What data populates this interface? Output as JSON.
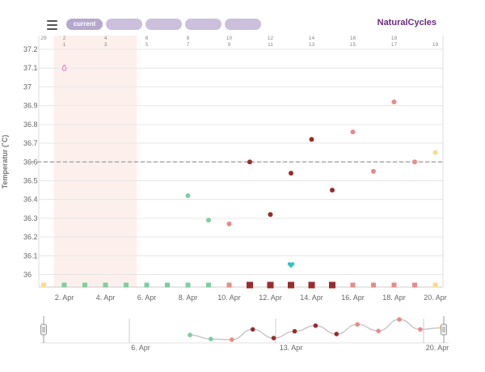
{
  "header": {
    "brand": "NaturalCycles",
    "tabs": [
      {
        "label": "current",
        "active": true
      },
      {
        "label": "",
        "active": false
      },
      {
        "label": "",
        "active": false
      },
      {
        "label": "",
        "active": false
      },
      {
        "label": "",
        "active": false
      }
    ]
  },
  "colors": {
    "period_band": "#fdf0ec",
    "coverline": "#aaaaaa",
    "green_day": "#7ccf9e",
    "red_day": "#e88a8a",
    "dark_red_day": "#9b2b2b",
    "yellow_day": "#ffd98a",
    "brand": "#6a2c84",
    "ovulation_heart": "#2ec4c4",
    "mucus_drop": "#e07bbf"
  },
  "chart_data": {
    "type": "scatter",
    "ylabel": "Temperatur (˚C)",
    "ylim": [
      35.95,
      37.25
    ],
    "yticks": [
      "37.2",
      "37.1",
      "37",
      "36.9",
      "36.8",
      "36.7",
      "36.6",
      "36.5",
      "36.4",
      "36.3",
      "36.2",
      "36.1",
      "36"
    ],
    "coverline": 36.6,
    "period_days": [
      1,
      4
    ],
    "top_day_numbers_row1": [
      "29",
      "2",
      "4",
      "6",
      "8",
      "10",
      "12",
      "14",
      "16",
      "18"
    ],
    "top_day_numbers_row2": [
      "1",
      "3",
      "5",
      "7",
      "9",
      "11",
      "13",
      "15",
      "17",
      "19"
    ],
    "x_labels": [
      "2. Apr",
      "4. Apr",
      "6. Apr",
      "8. Apr",
      "10. Apr",
      "12. Apr",
      "14. Apr",
      "16. Apr",
      "18. Apr",
      "20. Apr"
    ],
    "temperatures": [
      {
        "day": 7,
        "value": 36.42,
        "status": "green"
      },
      {
        "day": 8,
        "value": 36.29,
        "status": "green"
      },
      {
        "day": 9,
        "value": 36.27,
        "status": "red"
      },
      {
        "day": 10,
        "value": 36.6,
        "status": "dark_red"
      },
      {
        "day": 11,
        "value": 36.32,
        "status": "dark_red"
      },
      {
        "day": 12,
        "value": 36.54,
        "status": "dark_red"
      },
      {
        "day": 13,
        "value": 36.72,
        "status": "dark_red"
      },
      {
        "day": 14,
        "value": 36.45,
        "status": "dark_red"
      },
      {
        "day": 15,
        "value": 36.76,
        "status": "red"
      },
      {
        "day": 16,
        "value": 36.55,
        "status": "red"
      },
      {
        "day": 17,
        "value": 36.92,
        "status": "red"
      },
      {
        "day": 18,
        "value": 36.6,
        "status": "red"
      },
      {
        "day": 19,
        "value": 36.65,
        "status": "yellow"
      }
    ],
    "day_markers": [
      {
        "day": 0,
        "status": "yellow"
      },
      {
        "day": 1,
        "status": "green"
      },
      {
        "day": 2,
        "status": "green"
      },
      {
        "day": 3,
        "status": "green"
      },
      {
        "day": 4,
        "status": "green"
      },
      {
        "day": 5,
        "status": "green"
      },
      {
        "day": 6,
        "status": "green"
      },
      {
        "day": 7,
        "status": "green"
      },
      {
        "day": 8,
        "status": "green"
      },
      {
        "day": 9,
        "status": "red"
      },
      {
        "day": 10,
        "status": "dark_red"
      },
      {
        "day": 11,
        "status": "dark_red"
      },
      {
        "day": 12,
        "status": "dark_red"
      },
      {
        "day": 13,
        "status": "dark_red"
      },
      {
        "day": 14,
        "status": "dark_red"
      },
      {
        "day": 15,
        "status": "red"
      },
      {
        "day": 16,
        "status": "red"
      },
      {
        "day": 17,
        "status": "red"
      },
      {
        "day": 18,
        "status": "red"
      },
      {
        "day": 19,
        "status": "yellow"
      }
    ],
    "mucus_marker_day": 1,
    "mucus_marker_value": 37.1,
    "ovulation_marker_day": 12,
    "ovulation_marker_value": 36.05,
    "navigator_labels": [
      "6. Apr",
      "13. Apr",
      "20. Apr"
    ]
  }
}
